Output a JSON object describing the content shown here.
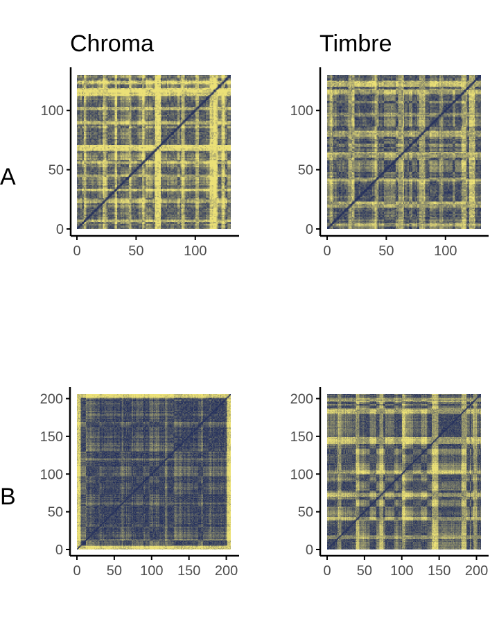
{
  "column_titles": [
    "Chroma",
    "Timbre"
  ],
  "row_labels": [
    "A",
    "B"
  ],
  "colors": {
    "low": "#24305e",
    "mid": "#6b7393",
    "high": "#ece177",
    "axis": "#000000",
    "tick_text": "#4d4d4d"
  },
  "chart_data": [
    {
      "type": "heatmap",
      "title": "Chroma",
      "row": "A",
      "n": 130,
      "xlim": [
        0,
        130
      ],
      "ylim": [
        0,
        130
      ],
      "xticks": [
        0,
        50,
        100
      ],
      "yticks": [
        0,
        50,
        100
      ],
      "description_of_values": "self-similarity matrix, diagonal is dark (similar); many bright yellow vertical/horizontal bands"
    },
    {
      "type": "heatmap",
      "title": "Timbre",
      "row": "A",
      "n": 130,
      "xlim": [
        0,
        130
      ],
      "ylim": [
        0,
        130
      ],
      "xticks": [
        0,
        50,
        100
      ],
      "yticks": [
        0,
        50,
        100
      ]
    },
    {
      "type": "heatmap",
      "title": "Chroma",
      "row": "B",
      "n": 206,
      "xlim": [
        0,
        206
      ],
      "ylim": [
        0,
        206
      ],
      "xticks": [
        0,
        50,
        100,
        150,
        200
      ],
      "yticks": [
        0,
        50,
        100,
        150,
        200
      ]
    },
    {
      "type": "heatmap",
      "title": "Timbre",
      "row": "B",
      "n": 206,
      "xlim": [
        0,
        206
      ],
      "ylim": [
        0,
        206
      ],
      "xticks": [
        0,
        50,
        100,
        150,
        200
      ],
      "yticks": [
        0,
        50,
        100,
        150,
        200
      ]
    }
  ]
}
